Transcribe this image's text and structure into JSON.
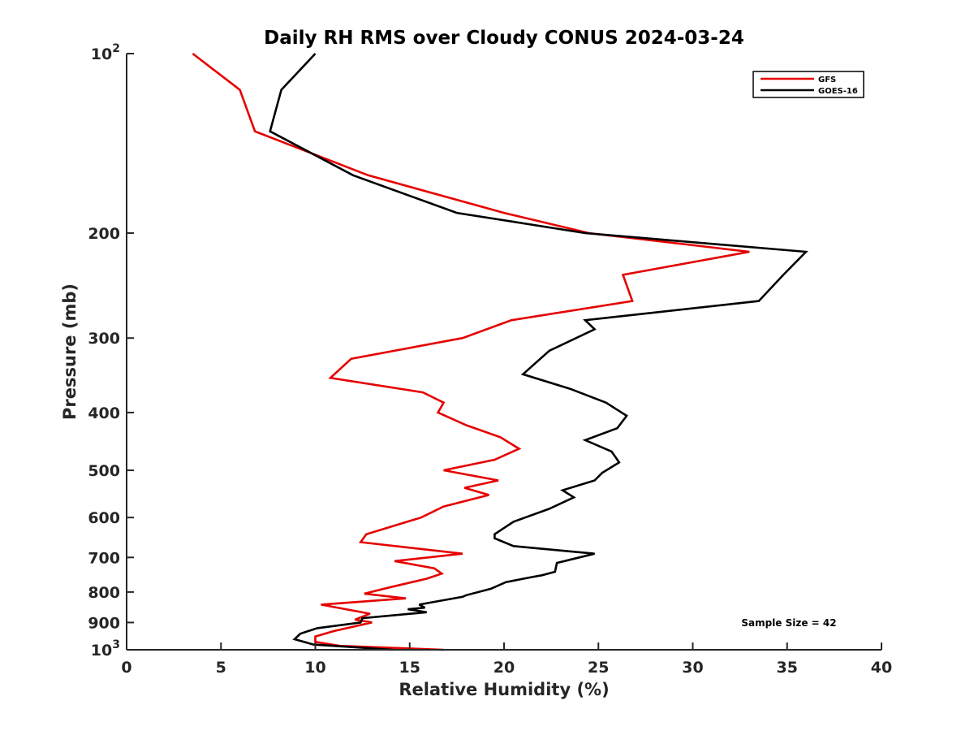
{
  "chart_data": {
    "type": "line",
    "title": "Daily RH RMS over Cloudy CONUS 2024-03-24",
    "xlabel": "Relative Humidity (%)",
    "ylabel": "Pressure (mb)",
    "xlim": [
      0,
      40
    ],
    "ylim": [
      100,
      1000
    ],
    "y_scale": "log",
    "y_reversed": true,
    "grid": false,
    "legend_position": "top-right",
    "x_ticks": [
      "0",
      "5",
      "10",
      "15",
      "20",
      "25",
      "30",
      "35",
      "40"
    ],
    "y_ticks": [
      {
        "value": 100,
        "base": "10",
        "exp": "2",
        "label": ""
      },
      {
        "value": 200,
        "label": "200"
      },
      {
        "value": 300,
        "label": "300"
      },
      {
        "value": 400,
        "label": "400"
      },
      {
        "value": 500,
        "label": "500"
      },
      {
        "value": 600,
        "label": "600"
      },
      {
        "value": 700,
        "label": "700"
      },
      {
        "value": 800,
        "label": "800"
      },
      {
        "value": 900,
        "label": "900"
      },
      {
        "value": 1000,
        "base": "10",
        "exp": "3",
        "label": ""
      }
    ],
    "series": [
      {
        "name": "GFS",
        "color": "#e60000",
        "points": [
          [
            3.5,
            100
          ],
          [
            6.0,
            115
          ],
          [
            6.8,
            135
          ],
          [
            12.8,
            160
          ],
          [
            20.0,
            185
          ],
          [
            24.5,
            200
          ],
          [
            33.0,
            215
          ],
          [
            26.3,
            235
          ],
          [
            26.8,
            260
          ],
          [
            20.4,
            280
          ],
          [
            17.8,
            300
          ],
          [
            11.9,
            325
          ],
          [
            10.8,
            350
          ],
          [
            15.7,
            370
          ],
          [
            16.8,
            385
          ],
          [
            16.5,
            400
          ],
          [
            18.0,
            420
          ],
          [
            19.8,
            440
          ],
          [
            20.8,
            460
          ],
          [
            19.5,
            480
          ],
          [
            16.8,
            500
          ],
          [
            19.7,
            520
          ],
          [
            17.9,
            535
          ],
          [
            19.2,
            550
          ],
          [
            16.8,
            575
          ],
          [
            15.6,
            600
          ],
          [
            12.7,
            640
          ],
          [
            12.4,
            660
          ],
          [
            17.8,
            690
          ],
          [
            14.2,
            710
          ],
          [
            16.3,
            730
          ],
          [
            16.7,
            745
          ],
          [
            15.9,
            760
          ],
          [
            14.0,
            785
          ],
          [
            12.6,
            805
          ],
          [
            14.8,
            820
          ],
          [
            10.3,
            840
          ],
          [
            12.9,
            870
          ],
          [
            12.1,
            890
          ],
          [
            13.0,
            900
          ],
          [
            11.0,
            930
          ],
          [
            10.0,
            950
          ],
          [
            10.0,
            970
          ],
          [
            11.3,
            985
          ],
          [
            16.8,
            1000
          ]
        ]
      },
      {
        "name": "GOES-16",
        "color": "#000000",
        "points": [
          [
            10.0,
            100
          ],
          [
            8.2,
            115
          ],
          [
            7.6,
            135
          ],
          [
            12.0,
            160
          ],
          [
            17.5,
            185
          ],
          [
            24.3,
            200
          ],
          [
            36.0,
            215
          ],
          [
            34.8,
            235
          ],
          [
            33.5,
            260
          ],
          [
            24.3,
            280
          ],
          [
            24.8,
            290
          ],
          [
            22.4,
            315
          ],
          [
            21.0,
            345
          ],
          [
            23.5,
            365
          ],
          [
            25.4,
            385
          ],
          [
            26.5,
            405
          ],
          [
            26.0,
            425
          ],
          [
            24.3,
            445
          ],
          [
            25.7,
            465
          ],
          [
            26.1,
            485
          ],
          [
            25.2,
            505
          ],
          [
            24.8,
            520
          ],
          [
            23.1,
            540
          ],
          [
            23.7,
            555
          ],
          [
            22.4,
            580
          ],
          [
            20.5,
            610
          ],
          [
            19.5,
            640
          ],
          [
            19.5,
            650
          ],
          [
            20.5,
            670
          ],
          [
            24.8,
            690
          ],
          [
            22.8,
            715
          ],
          [
            22.7,
            740
          ],
          [
            22.0,
            750
          ],
          [
            21.5,
            755
          ],
          [
            20.1,
            770
          ],
          [
            19.3,
            790
          ],
          [
            18.0,
            810
          ],
          [
            17.8,
            815
          ],
          [
            15.5,
            840
          ],
          [
            15.8,
            850
          ],
          [
            14.9,
            855
          ],
          [
            15.9,
            865
          ],
          [
            12.5,
            885
          ],
          [
            12.4,
            900
          ],
          [
            10.1,
            920
          ],
          [
            9.2,
            940
          ],
          [
            8.9,
            960
          ],
          [
            9.9,
            980
          ],
          [
            14.1,
            1000
          ]
        ]
      }
    ],
    "annotations": [
      "Sample Size = 42"
    ]
  }
}
